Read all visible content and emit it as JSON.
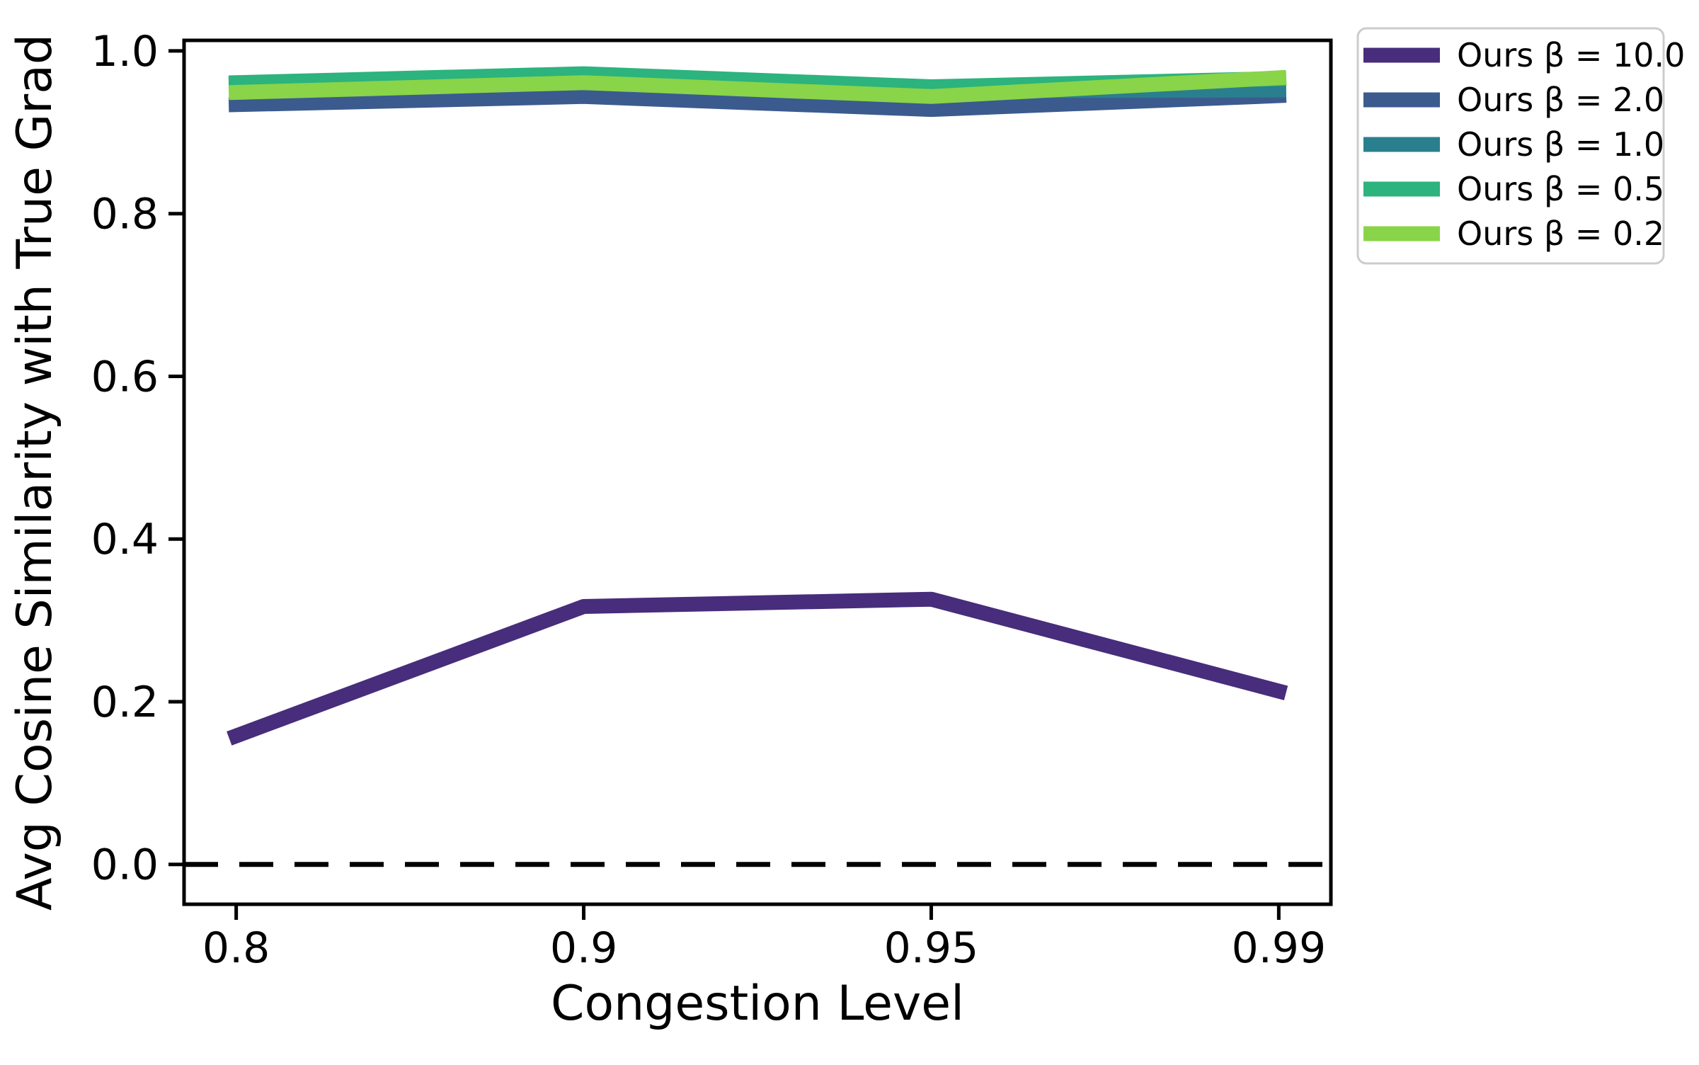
{
  "chart_data": {
    "type": "line",
    "title": "",
    "xlabel": "Congestion Level",
    "ylabel": "Avg Cosine Similarity with True Grad",
    "categories": [
      "0.8",
      "0.9",
      "0.95",
      "0.99"
    ],
    "x_tick_labels": [
      "0.8",
      "0.9",
      "0.95",
      "0.99"
    ],
    "y_ticks": {
      "values": [
        0.0,
        0.2,
        0.4,
        0.6,
        0.8,
        1.0
      ],
      "labels": [
        "0.0",
        "0.2",
        "0.4",
        "0.6",
        "0.8",
        "1.0"
      ]
    },
    "ylim": [
      -0.049,
      1.013
    ],
    "x_margin_fraction": 0.05,
    "grid": false,
    "series": [
      {
        "name": "Ours β = 10.0",
        "color": "#472d7b",
        "values": [
          0.158,
          0.317,
          0.326,
          0.213
        ]
      },
      {
        "name": "Ours β = 2.0",
        "color": "#3b5b8e",
        "values": [
          0.934,
          0.944,
          0.928,
          0.945
        ]
      },
      {
        "name": "Ours β = 1.0",
        "color": "#2a7f8e",
        "values": [
          0.958,
          0.968,
          0.951,
          0.952
        ]
      },
      {
        "name": "Ours β = 0.5",
        "color": "#2cb37e",
        "values": [
          0.961,
          0.972,
          0.956,
          0.966
        ]
      },
      {
        "name": "Ours β = 0.2",
        "color": "#89d448",
        "values": [
          0.949,
          0.961,
          0.944,
          0.967
        ]
      }
    ],
    "reference_line": {
      "y": 0.0,
      "style": "dashed",
      "color": "#000000"
    },
    "legend": {
      "position": "upper-right-outside",
      "border_color": "#cccccc",
      "background": "#ffffff"
    },
    "axis_color": "#000000"
  }
}
